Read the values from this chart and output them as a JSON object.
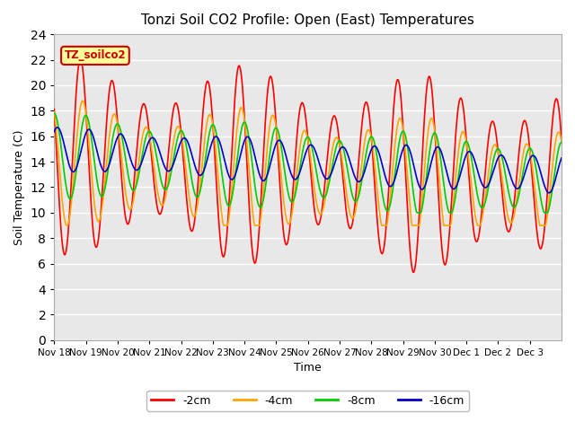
{
  "title": "Tonzi Soil CO2 Profile: Open (East) Temperatures",
  "xlabel": "Time",
  "ylabel": "Soil Temperature (C)",
  "ylim": [
    0,
    24
  ],
  "background_color": "#ffffff",
  "plot_bg_color": "#e8e8e8",
  "grid_color": "#ffffff",
  "xtick_labels": [
    "Nov 18",
    "Nov 19",
    "Nov 20",
    "Nov 21",
    "Nov 22",
    "Nov 23",
    "Nov 24",
    "Nov 25",
    "Nov 26",
    "Nov 27",
    "Nov 28",
    "Nov 29",
    "Nov 30",
    "Dec 1",
    "Dec 2",
    "Dec 3"
  ],
  "series": {
    "-2cm": {
      "color": "#ff0000",
      "label": "-2cm"
    },
    "-4cm": {
      "color": "#ffa500",
      "label": "-4cm"
    },
    "-8cm": {
      "color": "#00cc00",
      "label": "-8cm"
    },
    "-16cm": {
      "color": "#0000cc",
      "label": "-16cm"
    }
  },
  "legend_label": "TZ_soilco2",
  "legend_bg": "#ffff99",
  "legend_border": "#cc0000",
  "n_days": 16,
  "pts_per_day": 48
}
